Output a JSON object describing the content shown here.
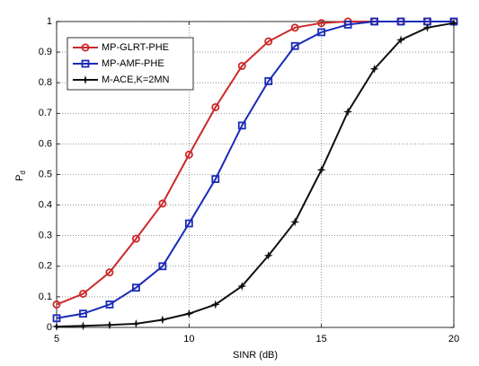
{
  "chart_data": {
    "type": "line",
    "xlabel": "SINR (dB)",
    "ylabel": "P",
    "ylabel_subscript": "d",
    "x": [
      5,
      6,
      7,
      8,
      9,
      10,
      11,
      12,
      13,
      14,
      15,
      16,
      17,
      18,
      19,
      20
    ],
    "series": [
      {
        "name": "MP-GLRT-PHE",
        "color": "#cc2a2a",
        "marker": "circle",
        "values": [
          0.075,
          0.11,
          0.18,
          0.29,
          0.405,
          0.565,
          0.72,
          0.855,
          0.935,
          0.98,
          0.995,
          1,
          1,
          1,
          1,
          1
        ]
      },
      {
        "name": "MP-AMF-PHE",
        "color": "#1a2bb8",
        "marker": "square",
        "values": [
          0.03,
          0.045,
          0.075,
          0.13,
          0.2,
          0.34,
          0.485,
          0.66,
          0.805,
          0.92,
          0.965,
          0.99,
          1,
          1,
          1,
          1
        ]
      },
      {
        "name": "M-ACE,K=2MN",
        "color": "#111111",
        "marker": "star",
        "values": [
          0.003,
          0.005,
          0.008,
          0.012,
          0.025,
          0.045,
          0.075,
          0.135,
          0.235,
          0.345,
          0.515,
          0.705,
          0.845,
          0.94,
          0.98,
          0.995
        ]
      }
    ],
    "xlim": [
      5,
      20
    ],
    "xticks": [
      5,
      10,
      15,
      20
    ],
    "ylim": [
      0,
      1
    ],
    "yticks": [
      0,
      0.1,
      0.2,
      0.3,
      0.4,
      0.5,
      0.6,
      0.7,
      0.8,
      0.9,
      1
    ],
    "grid": true,
    "legend": "upper-left"
  }
}
